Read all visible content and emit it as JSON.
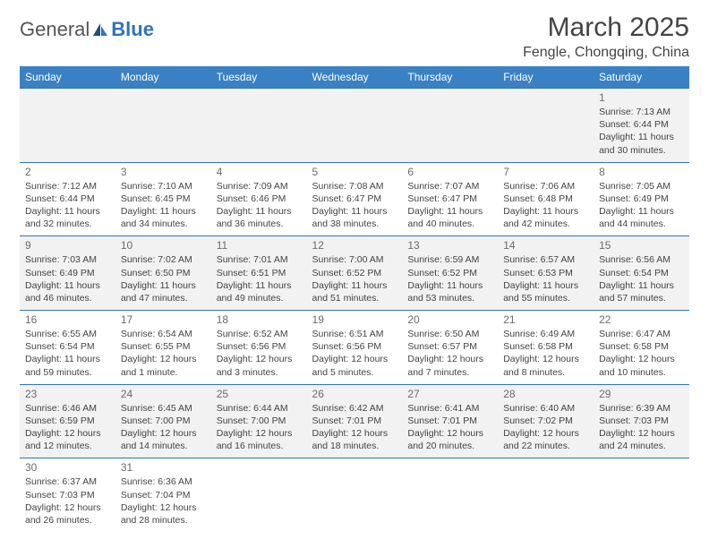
{
  "logo": {
    "text_general": "General",
    "text_blue": "Blue"
  },
  "header": {
    "month_year": "March 2025",
    "location": "Fengle, Chongqing, China"
  },
  "calendar": {
    "day_headers": [
      "Sunday",
      "Monday",
      "Tuesday",
      "Wednesday",
      "Thursday",
      "Friday",
      "Saturday"
    ],
    "header_bg": "#3a81c4",
    "header_fg": "#ffffff",
    "border_color": "#2e75b6",
    "alt_row_bg": "#f2f2f2",
    "text_color": "#444444",
    "weeks": [
      [
        null,
        null,
        null,
        null,
        null,
        null,
        {
          "n": "1",
          "sr": "Sunrise: 7:13 AM",
          "ss": "Sunset: 6:44 PM",
          "dl1": "Daylight: 11 hours",
          "dl2": "and 30 minutes."
        }
      ],
      [
        {
          "n": "2",
          "sr": "Sunrise: 7:12 AM",
          "ss": "Sunset: 6:44 PM",
          "dl1": "Daylight: 11 hours",
          "dl2": "and 32 minutes."
        },
        {
          "n": "3",
          "sr": "Sunrise: 7:10 AM",
          "ss": "Sunset: 6:45 PM",
          "dl1": "Daylight: 11 hours",
          "dl2": "and 34 minutes."
        },
        {
          "n": "4",
          "sr": "Sunrise: 7:09 AM",
          "ss": "Sunset: 6:46 PM",
          "dl1": "Daylight: 11 hours",
          "dl2": "and 36 minutes."
        },
        {
          "n": "5",
          "sr": "Sunrise: 7:08 AM",
          "ss": "Sunset: 6:47 PM",
          "dl1": "Daylight: 11 hours",
          "dl2": "and 38 minutes."
        },
        {
          "n": "6",
          "sr": "Sunrise: 7:07 AM",
          "ss": "Sunset: 6:47 PM",
          "dl1": "Daylight: 11 hours",
          "dl2": "and 40 minutes."
        },
        {
          "n": "7",
          "sr": "Sunrise: 7:06 AM",
          "ss": "Sunset: 6:48 PM",
          "dl1": "Daylight: 11 hours",
          "dl2": "and 42 minutes."
        },
        {
          "n": "8",
          "sr": "Sunrise: 7:05 AM",
          "ss": "Sunset: 6:49 PM",
          "dl1": "Daylight: 11 hours",
          "dl2": "and 44 minutes."
        }
      ],
      [
        {
          "n": "9",
          "sr": "Sunrise: 7:03 AM",
          "ss": "Sunset: 6:49 PM",
          "dl1": "Daylight: 11 hours",
          "dl2": "and 46 minutes."
        },
        {
          "n": "10",
          "sr": "Sunrise: 7:02 AM",
          "ss": "Sunset: 6:50 PM",
          "dl1": "Daylight: 11 hours",
          "dl2": "and 47 minutes."
        },
        {
          "n": "11",
          "sr": "Sunrise: 7:01 AM",
          "ss": "Sunset: 6:51 PM",
          "dl1": "Daylight: 11 hours",
          "dl2": "and 49 minutes."
        },
        {
          "n": "12",
          "sr": "Sunrise: 7:00 AM",
          "ss": "Sunset: 6:52 PM",
          "dl1": "Daylight: 11 hours",
          "dl2": "and 51 minutes."
        },
        {
          "n": "13",
          "sr": "Sunrise: 6:59 AM",
          "ss": "Sunset: 6:52 PM",
          "dl1": "Daylight: 11 hours",
          "dl2": "and 53 minutes."
        },
        {
          "n": "14",
          "sr": "Sunrise: 6:57 AM",
          "ss": "Sunset: 6:53 PM",
          "dl1": "Daylight: 11 hours",
          "dl2": "and 55 minutes."
        },
        {
          "n": "15",
          "sr": "Sunrise: 6:56 AM",
          "ss": "Sunset: 6:54 PM",
          "dl1": "Daylight: 11 hours",
          "dl2": "and 57 minutes."
        }
      ],
      [
        {
          "n": "16",
          "sr": "Sunrise: 6:55 AM",
          "ss": "Sunset: 6:54 PM",
          "dl1": "Daylight: 11 hours",
          "dl2": "and 59 minutes."
        },
        {
          "n": "17",
          "sr": "Sunrise: 6:54 AM",
          "ss": "Sunset: 6:55 PM",
          "dl1": "Daylight: 12 hours",
          "dl2": "and 1 minute."
        },
        {
          "n": "18",
          "sr": "Sunrise: 6:52 AM",
          "ss": "Sunset: 6:56 PM",
          "dl1": "Daylight: 12 hours",
          "dl2": "and 3 minutes."
        },
        {
          "n": "19",
          "sr": "Sunrise: 6:51 AM",
          "ss": "Sunset: 6:56 PM",
          "dl1": "Daylight: 12 hours",
          "dl2": "and 5 minutes."
        },
        {
          "n": "20",
          "sr": "Sunrise: 6:50 AM",
          "ss": "Sunset: 6:57 PM",
          "dl1": "Daylight: 12 hours",
          "dl2": "and 7 minutes."
        },
        {
          "n": "21",
          "sr": "Sunrise: 6:49 AM",
          "ss": "Sunset: 6:58 PM",
          "dl1": "Daylight: 12 hours",
          "dl2": "and 8 minutes."
        },
        {
          "n": "22",
          "sr": "Sunrise: 6:47 AM",
          "ss": "Sunset: 6:58 PM",
          "dl1": "Daylight: 12 hours",
          "dl2": "and 10 minutes."
        }
      ],
      [
        {
          "n": "23",
          "sr": "Sunrise: 6:46 AM",
          "ss": "Sunset: 6:59 PM",
          "dl1": "Daylight: 12 hours",
          "dl2": "and 12 minutes."
        },
        {
          "n": "24",
          "sr": "Sunrise: 6:45 AM",
          "ss": "Sunset: 7:00 PM",
          "dl1": "Daylight: 12 hours",
          "dl2": "and 14 minutes."
        },
        {
          "n": "25",
          "sr": "Sunrise: 6:44 AM",
          "ss": "Sunset: 7:00 PM",
          "dl1": "Daylight: 12 hours",
          "dl2": "and 16 minutes."
        },
        {
          "n": "26",
          "sr": "Sunrise: 6:42 AM",
          "ss": "Sunset: 7:01 PM",
          "dl1": "Daylight: 12 hours",
          "dl2": "and 18 minutes."
        },
        {
          "n": "27",
          "sr": "Sunrise: 6:41 AM",
          "ss": "Sunset: 7:01 PM",
          "dl1": "Daylight: 12 hours",
          "dl2": "and 20 minutes."
        },
        {
          "n": "28",
          "sr": "Sunrise: 6:40 AM",
          "ss": "Sunset: 7:02 PM",
          "dl1": "Daylight: 12 hours",
          "dl2": "and 22 minutes."
        },
        {
          "n": "29",
          "sr": "Sunrise: 6:39 AM",
          "ss": "Sunset: 7:03 PM",
          "dl1": "Daylight: 12 hours",
          "dl2": "and 24 minutes."
        }
      ],
      [
        {
          "n": "30",
          "sr": "Sunrise: 6:37 AM",
          "ss": "Sunset: 7:03 PM",
          "dl1": "Daylight: 12 hours",
          "dl2": "and 26 minutes."
        },
        {
          "n": "31",
          "sr": "Sunrise: 6:36 AM",
          "ss": "Sunset: 7:04 PM",
          "dl1": "Daylight: 12 hours",
          "dl2": "and 28 minutes."
        },
        null,
        null,
        null,
        null,
        null
      ]
    ]
  }
}
